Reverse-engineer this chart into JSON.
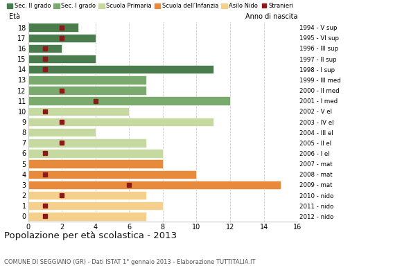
{
  "ages": [
    18,
    17,
    16,
    15,
    14,
    13,
    12,
    11,
    10,
    9,
    8,
    7,
    6,
    5,
    4,
    3,
    2,
    1,
    0
  ],
  "anno_nascita": [
    "1994 - V sup",
    "1995 - VI sup",
    "1996 - III sup",
    "1997 - II sup",
    "1998 - I sup",
    "1999 - III med",
    "2000 - II med",
    "2001 - I med",
    "2002 - V el",
    "2003 - IV el",
    "2004 - III el",
    "2005 - II el",
    "2006 - I el",
    "2007 - mat",
    "2008 - mat",
    "2009 - mat",
    "2010 - nido",
    "2011 - nido",
    "2012 - nido"
  ],
  "bar_values": [
    3,
    4,
    2,
    4,
    11,
    7,
    7,
    12,
    6,
    11,
    4,
    7,
    8,
    8,
    10,
    15,
    7,
    8,
    7
  ],
  "stranieri": [
    2,
    2,
    1,
    1,
    1,
    0,
    2,
    4,
    1,
    2,
    0,
    2,
    1,
    0,
    1,
    6,
    2,
    1,
    1
  ],
  "bar_colors_by_age": {
    "18": "#4a7c4e",
    "17": "#4a7c4e",
    "16": "#4a7c4e",
    "15": "#4a7c4e",
    "14": "#4a7c4e",
    "13": "#7aaa6e",
    "12": "#7aaa6e",
    "11": "#7aaa6e",
    "10": "#c5d9a0",
    "9": "#c5d9a0",
    "8": "#c5d9a0",
    "7": "#c5d9a0",
    "6": "#c5d9a0",
    "5": "#e88a3c",
    "4": "#e88a3c",
    "3": "#e88a3c",
    "2": "#f5d08c",
    "1": "#f5d08c",
    "0": "#f5d08c"
  },
  "stranieri_color": "#8b1a1a",
  "xlim": [
    0,
    16
  ],
  "xticks": [
    0,
    2,
    4,
    6,
    8,
    10,
    12,
    14,
    16
  ],
  "title_main": "Popolazione per età scolastica - 2013",
  "title_sub": "COMUNE DI SEGGIANO (GR) - Dati ISTAT 1° gennaio 2013 - Elaborazione TUTTITALIA.IT",
  "ylabel_left": "Età",
  "ylabel_right": "Anno di nascita",
  "bg_color": "#ffffff",
  "grid_color": "#bbbbbb",
  "legend_items": [
    {
      "label": "Sec. II grado",
      "color": "#4a7c4e",
      "type": "patch"
    },
    {
      "label": "Sec. I grado",
      "color": "#7aaa6e",
      "type": "patch"
    },
    {
      "label": "Scuola Primaria",
      "color": "#c5d9a0",
      "type": "patch"
    },
    {
      "label": "Scuola dell'Infanzia",
      "color": "#e88a3c",
      "type": "patch"
    },
    {
      "label": "Asilo Nido",
      "color": "#f5d08c",
      "type": "patch"
    },
    {
      "label": "Stranieri",
      "color": "#8b1a1a",
      "type": "marker"
    }
  ]
}
